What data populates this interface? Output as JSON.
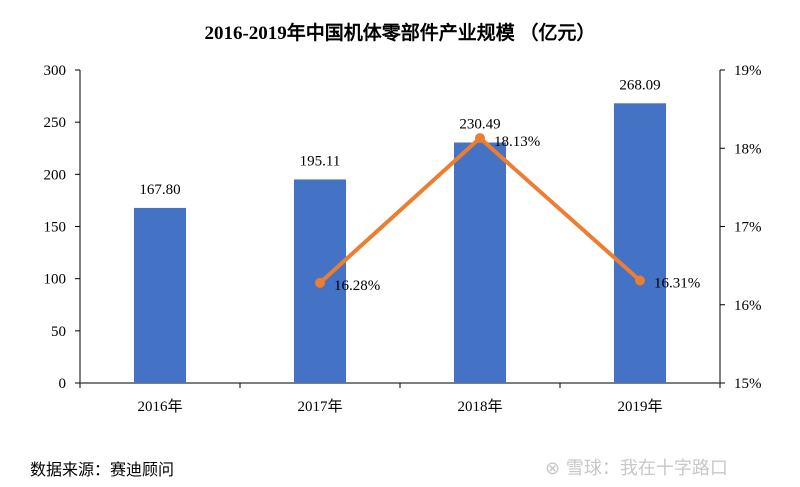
{
  "chart_data": {
    "type": "bar+line",
    "title": "2016-2019年中国机体零部件产业规模 （亿元）",
    "categories": [
      "2016年",
      "2017年",
      "2018年",
      "2019年"
    ],
    "series": [
      {
        "type": "bar",
        "values": [
          167.8,
          195.11,
          230.49,
          268.09
        ],
        "labels": [
          "167.80",
          "195.11",
          "230.49",
          "268.09"
        ],
        "color": "#4472C4",
        "axis": "left"
      },
      {
        "type": "line",
        "values": [
          null,
          16.28,
          18.13,
          16.31
        ],
        "labels": [
          "",
          "16.28%",
          "18.13%",
          "16.31%"
        ],
        "color": "#ED7D31",
        "axis": "right"
      }
    ],
    "y_left": {
      "range": [
        0,
        300
      ],
      "ticks": [
        "0",
        "50",
        "100",
        "150",
        "200",
        "250",
        "300"
      ]
    },
    "y_right": {
      "range": [
        15,
        19
      ],
      "ticks": [
        "15%",
        "16%",
        "17%",
        "18%",
        "19%"
      ]
    },
    "grid": false
  },
  "source": "数据来源：赛迪顾问",
  "watermark": "雪球：我在十字路口"
}
